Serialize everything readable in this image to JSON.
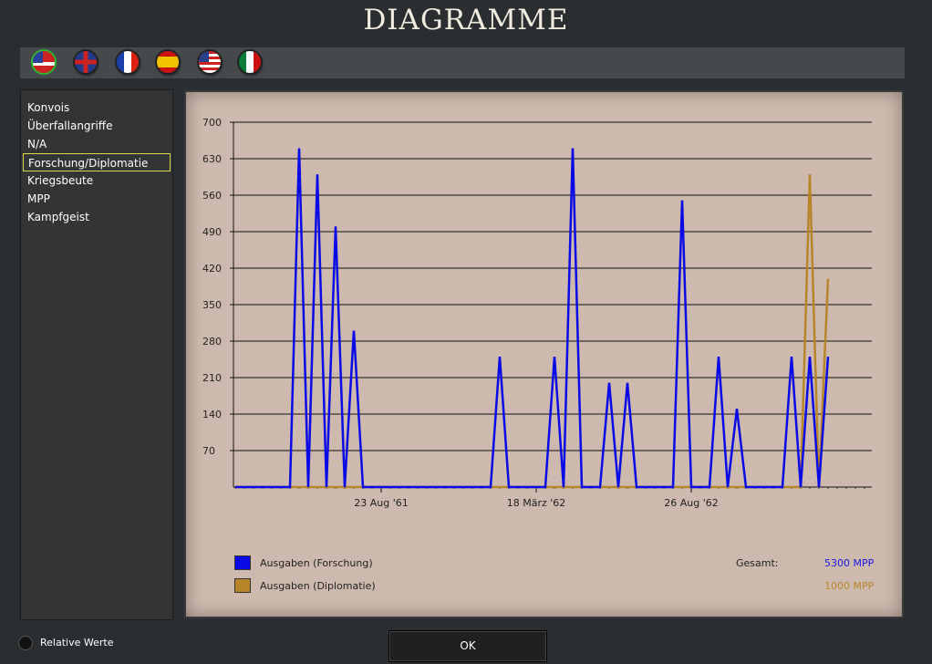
{
  "title": "DIAGRAMME",
  "flags": [
    {
      "name": "csa"
    },
    {
      "name": "uk"
    },
    {
      "name": "france"
    },
    {
      "name": "spain"
    },
    {
      "name": "usa"
    },
    {
      "name": "mexico"
    }
  ],
  "sidebar": {
    "items": [
      {
        "label": "Konvois"
      },
      {
        "label": "Überfallangriffe"
      },
      {
        "label": "N/A"
      },
      {
        "label": "Forschung/Diplomatie",
        "selected": true
      },
      {
        "label": "Kriegsbeute"
      },
      {
        "label": "MPP"
      },
      {
        "label": "Kampfgeist"
      }
    ]
  },
  "chart_data": {
    "type": "line",
    "ylim": [
      0,
      700
    ],
    "yticks": [
      "70",
      "140",
      "210",
      "280",
      "350",
      "420",
      "490",
      "560",
      "630",
      "700"
    ],
    "xticks": [
      {
        "index": 16,
        "label": "23 Aug '61"
      },
      {
        "index": 33,
        "label": "18 März '62"
      },
      {
        "index": 50,
        "label": "26 Aug '62"
      }
    ],
    "grid": true,
    "legend_placement": "bottom",
    "series": [
      {
        "name": "Ausgaben (Forschung)",
        "color": "#0a0ae6",
        "peaks": {
          "7": 650,
          "9": 600,
          "11": 500,
          "13": 300,
          "29": 250,
          "35": 250,
          "37": 650,
          "41": 200,
          "43": 200,
          "49": 550,
          "53": 250,
          "55": 150,
          "61": 250,
          "63": 250,
          "65": 250
        },
        "length": 66
      },
      {
        "name": "Ausgaben (Diplomatie)",
        "color": "#b8862a",
        "peaks": {
          "63": 600,
          "65": 400
        },
        "length": 66
      }
    ],
    "totals_label": "Gesamt:",
    "totals": [
      "5300 MPP",
      "1000 MPP"
    ]
  },
  "relative_label": "Relative Werte",
  "ok_label": "OK"
}
